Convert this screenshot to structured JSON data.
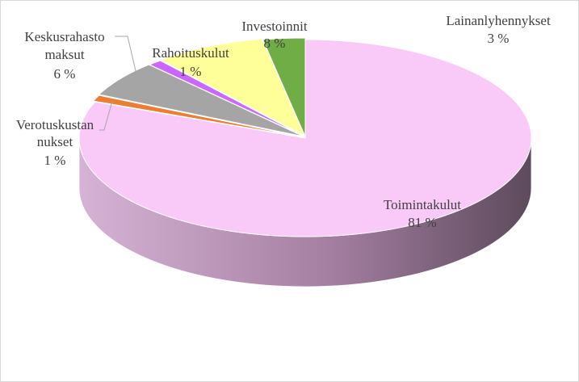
{
  "chart_data": {
    "type": "pie",
    "style": "3d-exploded-perspective",
    "title": "",
    "slices": [
      {
        "name": "Toimintakulut",
        "value": 81,
        "label_pct": "81 %",
        "color": "#f9c9f7",
        "side_color": "#c28fbe"
      },
      {
        "name": "Verotuskustannukset",
        "label_lines": [
          "Verotuskustan",
          "nukset"
        ],
        "value": 1,
        "label_pct": "1 %",
        "color": "#ed7d31",
        "side_color": "#b35d23"
      },
      {
        "name": "Keskusrahastomaksut",
        "label_lines": [
          "Keskusrahasto",
          "maksut"
        ],
        "value": 6,
        "label_pct": "6 %",
        "color": "#a5a5a5",
        "side_color": "#7b7b7b"
      },
      {
        "name": "Rahoituskulut",
        "value": 1,
        "label_pct": "1 %",
        "color": "#cc66ff",
        "side_color": "#9944cc"
      },
      {
        "name": "Investoinnit",
        "value": 8,
        "label_pct": "8 %",
        "color": "#ffff99",
        "side_color": "#cccc70"
      },
      {
        "name": "Lainanlyhennykset",
        "value": 3,
        "label_pct": "3 %",
        "color": "#70ad47",
        "side_color": "#4f7b32"
      }
    ],
    "legend": "none"
  }
}
